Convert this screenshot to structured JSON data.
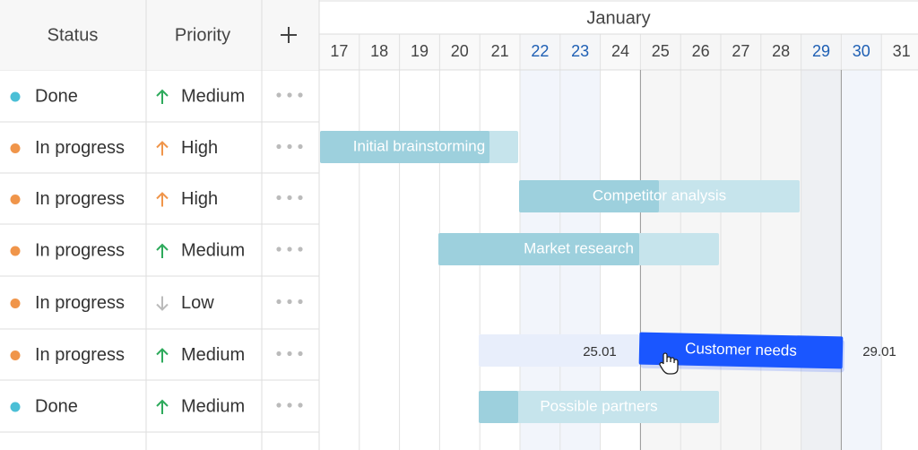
{
  "table": {
    "columns": [
      "Status",
      "Priority"
    ],
    "rows": [
      {
        "status": "Done",
        "priority": "Medium"
      },
      {
        "status": "In progress",
        "priority": "High"
      },
      {
        "status": "In progress",
        "priority": "High"
      },
      {
        "status": "In progress",
        "priority": "Medium"
      },
      {
        "status": "In progress",
        "priority": "Low"
      },
      {
        "status": "In progress",
        "priority": "Medium"
      },
      {
        "status": "Done",
        "priority": "Medium"
      }
    ]
  },
  "timeline": {
    "month": "January",
    "days": [
      17,
      18,
      19,
      20,
      21,
      22,
      23,
      24,
      25,
      26,
      27,
      28,
      29,
      30,
      31
    ]
  },
  "tasks": [
    {
      "name": "Initial brainstorming"
    },
    {
      "name": "Competitor analysis"
    },
    {
      "name": "Market research"
    },
    {
      "name": "Customer needs"
    },
    {
      "name": "Possible partners"
    }
  ],
  "drag": {
    "start_label": "25.01",
    "end_label": "29.01"
  }
}
